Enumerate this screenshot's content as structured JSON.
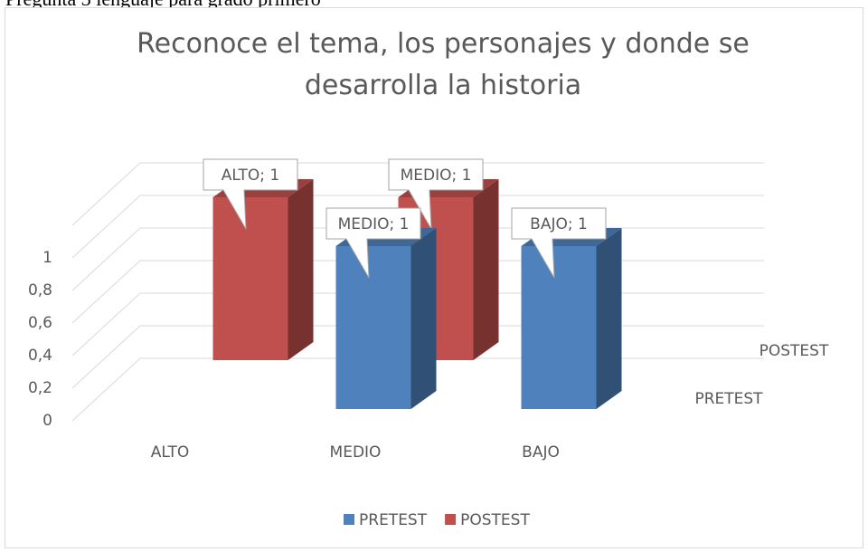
{
  "document_line": "Pregunta 3 lenguaje para grado primero",
  "chart_data": {
    "type": "bar3d",
    "title": "Reconoce el tema, los personajes y donde se desarrolla la historia",
    "categories": [
      "ALTO",
      "MEDIO",
      "BAJO"
    ],
    "series": [
      {
        "name": "PRETEST",
        "color": "#4f81bd",
        "values": [
          null,
          1,
          1
        ],
        "value_labels": [
          null,
          "MEDIO; 1",
          "BAJO; 1"
        ]
      },
      {
        "name": "POSTEST",
        "color": "#c0504d",
        "values": [
          1,
          1,
          null
        ],
        "value_labels": [
          "ALTO; 1",
          "MEDIO; 1",
          null
        ]
      }
    ],
    "ylim": [
      0,
      1.2
    ],
    "yticks": [
      0,
      {
        "value": 0.2,
        "label": "0,2"
      },
      {
        "value": 0.4,
        "label": "0,4"
      },
      {
        "value": 0.6,
        "label": "0,6"
      },
      {
        "value": 0.8,
        "label": "0,8"
      },
      1
    ],
    "grid": true,
    "legend": "bottom"
  }
}
